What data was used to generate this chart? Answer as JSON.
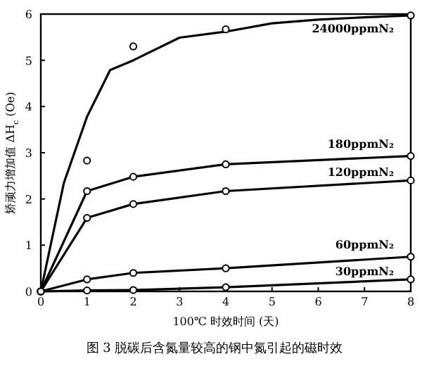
{
  "chart_data": {
    "type": "line",
    "title": "图 3  脱碳后含氮量较高的钢中氮引起的磁时效",
    "xlabel": "100℃ 时效时间 (天)",
    "ylabel": "矫顽力增加值 ΔH$_{c}$ (Oe)",
    "xlim": [
      0,
      8
    ],
    "ylim": [
      0,
      6
    ],
    "xticks": [
      0,
      1,
      2,
      3,
      4,
      5,
      6,
      7,
      8
    ],
    "yticks": [
      0,
      1,
      2,
      3,
      4,
      5,
      6
    ],
    "grid": false,
    "legend": false,
    "marker": "circle",
    "line_style": "solid",
    "series": [
      {
        "name": "24000ppmN₂",
        "marker": "none",
        "color": "#000000",
        "x": [
          0,
          0.5,
          1,
          1.5,
          2,
          3,
          4,
          5,
          6,
          7,
          8
        ],
        "values": [
          0,
          2.35,
          3.78,
          4.79,
          5.0,
          5.49,
          5.62,
          5.8,
          5.88,
          5.93,
          5.97
        ]
      },
      {
        "type": "scatter",
        "color": "#000000",
        "x": [
          1,
          2,
          4,
          8
        ],
        "values": [
          2.83,
          5.3,
          5.67,
          5.97
        ]
      },
      {
        "name": "180ppmN₂",
        "color": "#000000",
        "x": [
          0,
          1,
          2,
          4,
          8
        ],
        "values": [
          0,
          2.17,
          2.48,
          2.75,
          2.93
        ]
      },
      {
        "name": "120ppmN₂",
        "color": "#000000",
        "x": [
          0,
          1,
          2,
          4,
          8
        ],
        "values": [
          0,
          1.59,
          1.89,
          2.17,
          2.4
        ]
      },
      {
        "name": "60ppmN₂",
        "color": "#000000",
        "x": [
          0,
          1,
          2,
          4,
          8
        ],
        "values": [
          0,
          0.26,
          0.4,
          0.5,
          0.75
        ]
      },
      {
        "name": "30ppmN₂",
        "color": "#000000",
        "x": [
          0,
          1,
          2,
          4,
          8
        ],
        "values": [
          0,
          0.02,
          0.03,
          0.09,
          0.26
        ]
      }
    ]
  }
}
